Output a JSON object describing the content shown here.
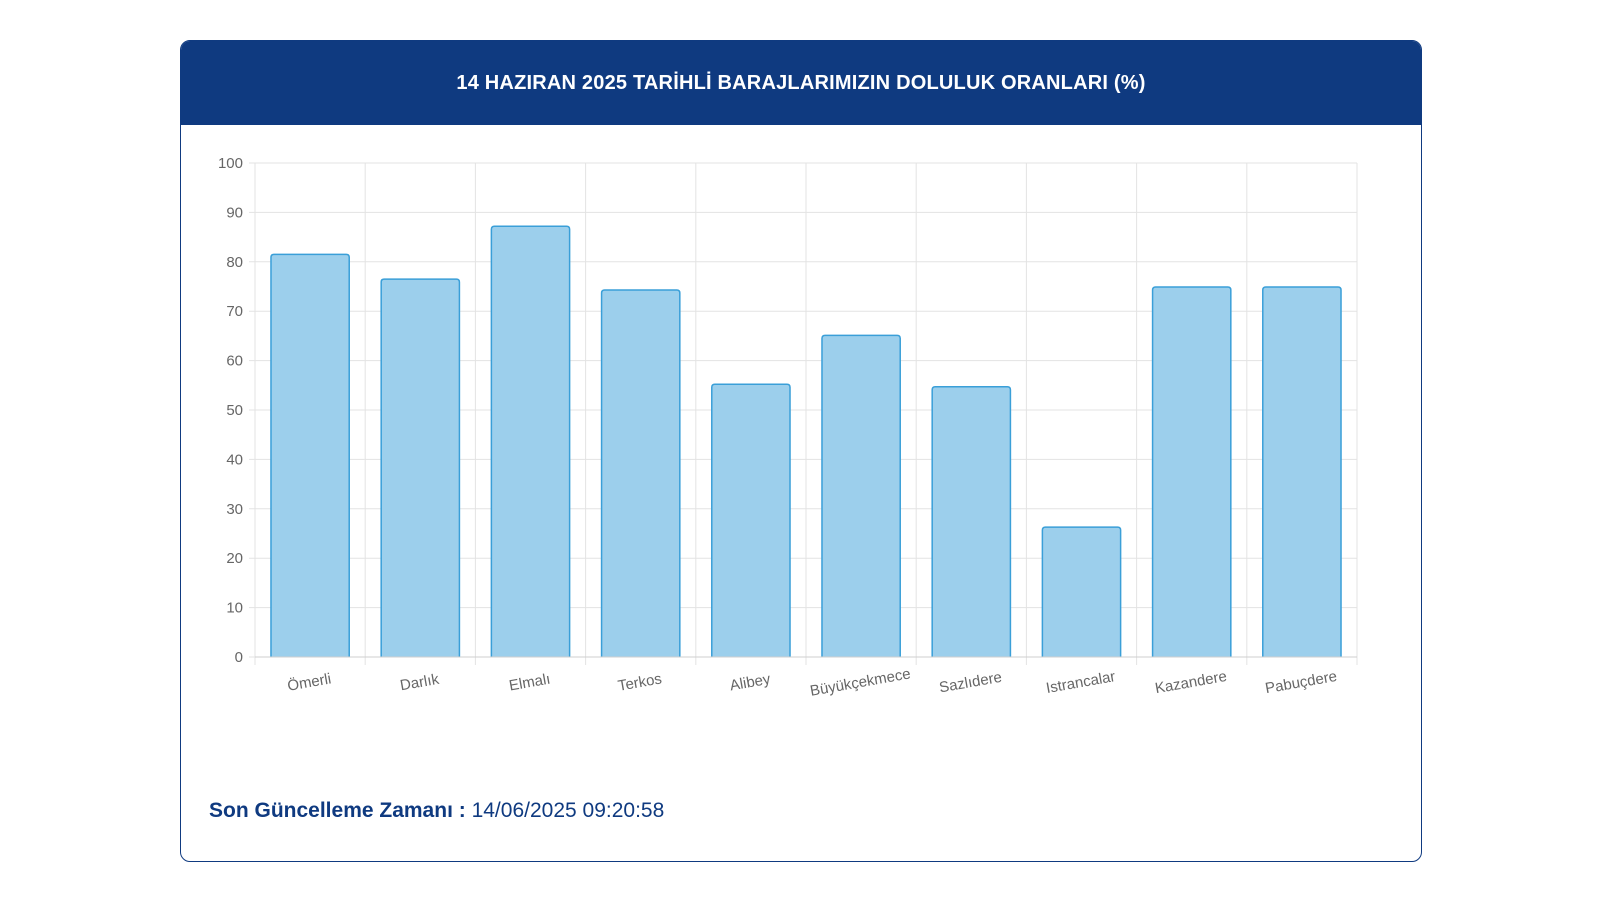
{
  "card": {
    "title": "14 HAZIRAN 2025 TARİHLİ BARAJLARIMIZIN DOLULUK ORANLARI (%)"
  },
  "footer": {
    "label": "Son Güncelleme Zamanı :",
    "timestamp": "14/06/2025 09:20:58"
  },
  "colors": {
    "header_bg": "#0f3a80",
    "bar_fill": "#9ccfec",
    "bar_stroke": "#3a9fd8",
    "grid": "#e3e3e3"
  },
  "chart_data": {
    "type": "bar",
    "categories": [
      "Ömerli",
      "Darlık",
      "Elmalı",
      "Terkos",
      "Alibey",
      "Büyükçekmece",
      "Sazlıdere",
      "Istrancalar",
      "Kazandere",
      "Pabuçdere"
    ],
    "values": [
      81.5,
      76.5,
      87.2,
      74.3,
      55.2,
      65.1,
      54.7,
      26.3,
      74.9,
      74.9
    ],
    "yticks": [
      0,
      10,
      20,
      30,
      40,
      50,
      60,
      70,
      80,
      90,
      100
    ],
    "ylim": [
      0,
      100
    ],
    "grid": true,
    "legend": false
  }
}
